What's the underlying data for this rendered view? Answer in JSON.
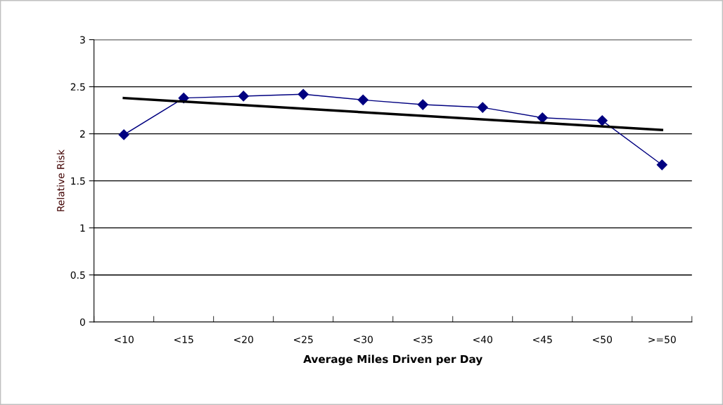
{
  "chart_data": {
    "type": "line",
    "xlabel": "Average Miles Driven per Day",
    "ylabel": "Relative Risk",
    "categories": [
      "<10",
      "<15",
      "<20",
      "<25",
      "<30",
      "<35",
      "<40",
      "<45",
      "<50",
      ">=50"
    ],
    "series": [
      {
        "color": "#000080",
        "marker": "diamond",
        "values": [
          1.99,
          2.38,
          2.4,
          2.42,
          2.36,
          2.31,
          2.28,
          2.17,
          2.14,
          1.67
        ]
      },
      {
        "type": "line",
        "color": "#000000",
        "marker": "none",
        "x": [
          "<10",
          ">=50"
        ],
        "values": [
          2.38,
          2.04
        ]
      }
    ],
    "ylim": [
      0,
      3
    ],
    "yticks": [
      0,
      0.5,
      1,
      1.5,
      2,
      2.5,
      3
    ],
    "grid": "y",
    "legend": false
  }
}
